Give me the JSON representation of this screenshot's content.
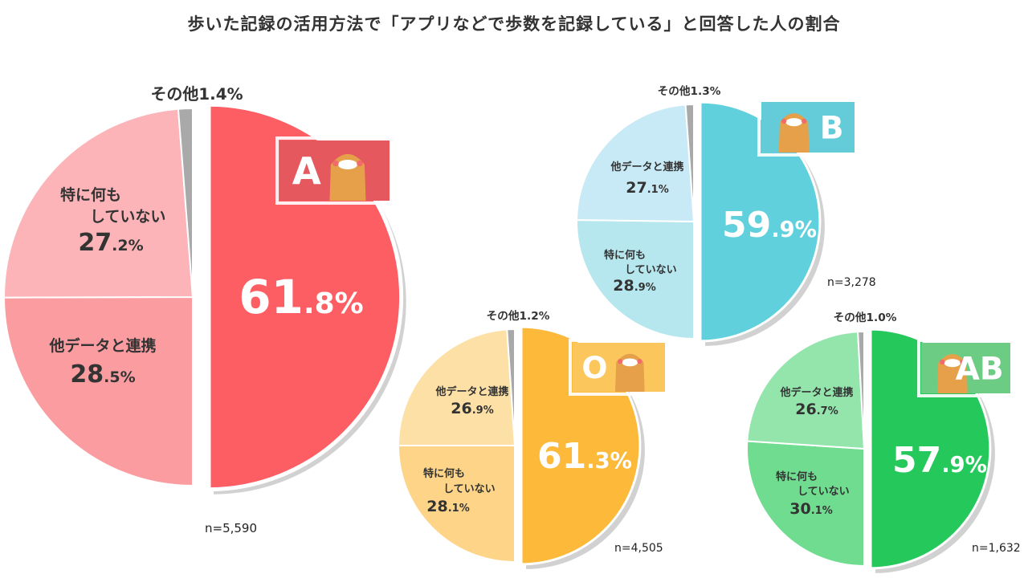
{
  "chart_data": {
    "type": "pie",
    "title": "歩いた記録の活用方法で「アプリなどで歩数を記録している」と回答した人の割合",
    "colors": {
      "other": "#a9a9a9"
    },
    "pies": [
      {
        "group": "A",
        "n": "n=5,590",
        "main": {
          "value": 61.8,
          "label": "61.8%",
          "color": "#fd5e63"
        },
        "slices": [
          {
            "name": "他データと連携",
            "value": 28.5,
            "label": "28.5%",
            "color": "#fb9ca0"
          },
          {
            "name": "特に何もしていない",
            "line1": "特に何も",
            "line2": "していない",
            "value": 27.2,
            "label": "27.2%",
            "color": "#fdb4b8"
          },
          {
            "name": "その他",
            "value": 1.4,
            "label": "その他1.4%",
            "color": "#a9a9a9"
          }
        ],
        "badge_color": "#e4585e"
      },
      {
        "group": "B",
        "n": "n=3,278",
        "main": {
          "value": 59.9,
          "label": "59.9%",
          "color": "#5fd0dc"
        },
        "slices": [
          {
            "name": "特に何もしていない",
            "line1": "特に何も",
            "line2": "していない",
            "value": 28.9,
            "label": "28.9%",
            "color": "#b6e6ee"
          },
          {
            "name": "他データと連携",
            "value": 27.1,
            "label": "27.1%",
            "color": "#c8eaf6"
          },
          {
            "name": "その他",
            "value": 1.3,
            "label": "その他1.3%",
            "color": "#a9a9a9"
          }
        ],
        "badge_color": "#63ccd8"
      },
      {
        "group": "O",
        "n": "n=4,505",
        "main": {
          "value": 61.3,
          "label": "61.3%",
          "color": "#fcb93a"
        },
        "slices": [
          {
            "name": "特に何もしていない",
            "line1": "特に何も",
            "line2": "していない",
            "value": 28.1,
            "label": "28.1%",
            "color": "#fdd488"
          },
          {
            "name": "他データと連携",
            "value": 26.9,
            "label": "26.9%",
            "color": "#fde0a6"
          },
          {
            "name": "その他",
            "value": 1.2,
            "label": "その他1.2%",
            "color": "#a9a9a9"
          }
        ],
        "badge_color": "#fbc65c"
      },
      {
        "group": "AB",
        "n": "n=1,632",
        "main": {
          "value": 57.9,
          "label": "57.9%",
          "color": "#25c95b"
        },
        "slices": [
          {
            "name": "特に何もしていない",
            "line1": "特に何も",
            "line2": "していない",
            "value": 30.1,
            "label": "30.1%",
            "color": "#70dc90"
          },
          {
            "name": "他データと連携",
            "value": 26.7,
            "label": "26.7%",
            "color": "#93e5ac"
          },
          {
            "name": "その他",
            "value": 1.0,
            "label": "その他1.0%",
            "color": "#a9a9a9"
          }
        ],
        "badge_color": "#6dcc84"
      }
    ]
  }
}
